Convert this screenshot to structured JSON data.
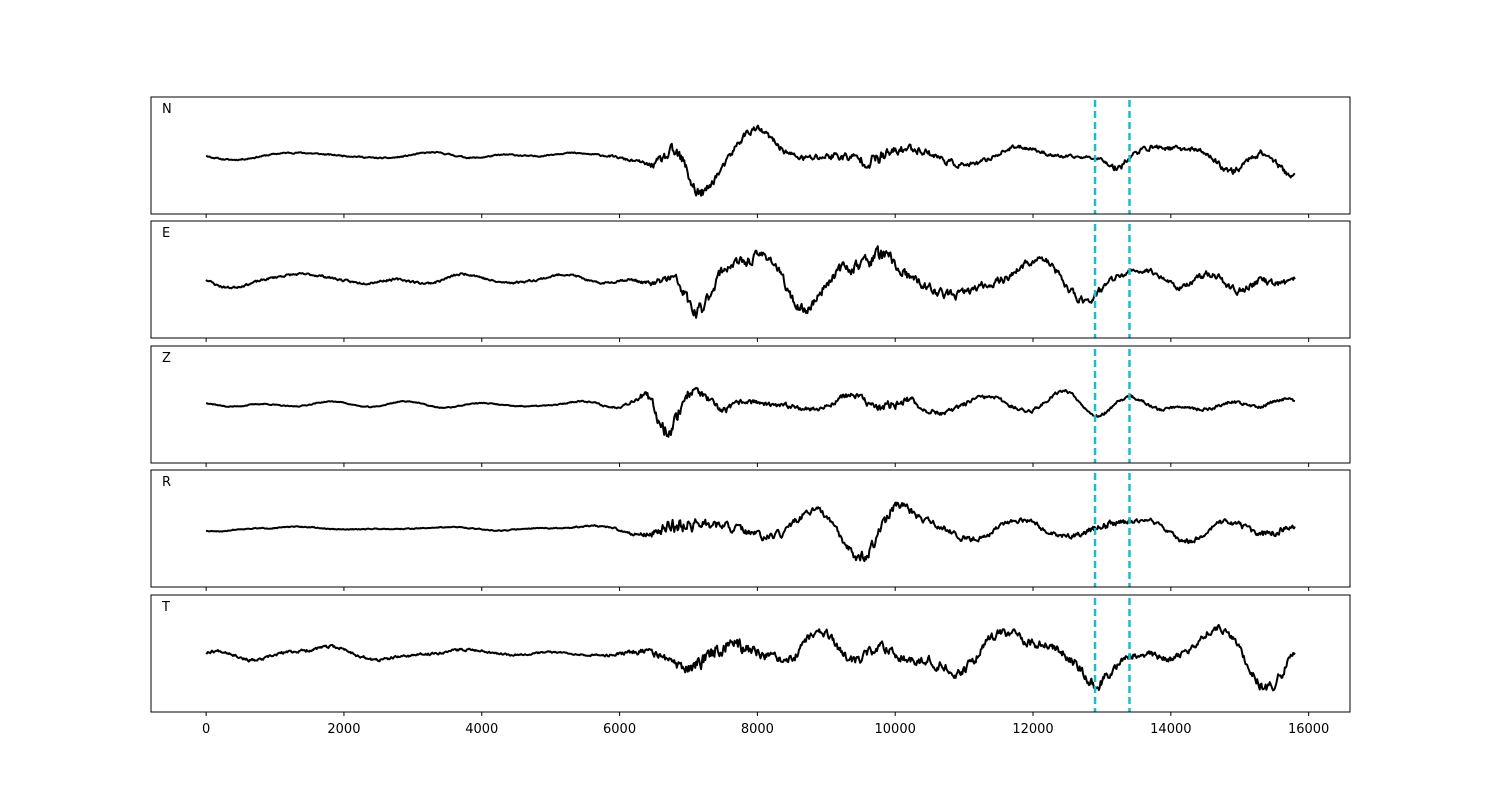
{
  "chart_data": {
    "type": "line",
    "title": "",
    "xlabel": "",
    "ylabel": "",
    "xlim": [
      -800,
      16600
    ],
    "x_ticks": [
      0,
      2000,
      4000,
      6000,
      8000,
      10000,
      12000,
      14000,
      16000
    ],
    "x_tick_labels": [
      "0",
      "2000",
      "4000",
      "6000",
      "8000",
      "10000",
      "12000",
      "14000",
      "16000"
    ],
    "x_range": [
      0,
      15800
    ],
    "grid": false,
    "line_color": "#000000",
    "marker_color": "#17becf",
    "markers": [
      12900,
      13400
    ],
    "panels": [
      {
        "label": "N",
        "seed": 11,
        "envelope": [
          [
            0,
            0.08
          ],
          [
            3000,
            0.08
          ],
          [
            5500,
            0.08
          ],
          [
            6300,
            0.18
          ],
          [
            6600,
            0.55
          ],
          [
            6800,
            0.95
          ],
          [
            7100,
            0.95
          ],
          [
            7400,
            0.45
          ],
          [
            8000,
            0.45
          ],
          [
            8500,
            0.35
          ],
          [
            9300,
            0.55
          ],
          [
            9800,
            0.85
          ],
          [
            10000,
            0.6
          ],
          [
            11000,
            0.3
          ],
          [
            12500,
            0.2
          ],
          [
            13000,
            0.15
          ],
          [
            13200,
            0.5
          ],
          [
            13500,
            0.3
          ],
          [
            14500,
            0.3
          ],
          [
            15000,
            0.45
          ],
          [
            15800,
            0.35
          ]
        ]
      },
      {
        "label": "E",
        "seed": 23,
        "envelope": [
          [
            0,
            0.14
          ],
          [
            3500,
            0.14
          ],
          [
            5800,
            0.12
          ],
          [
            6300,
            0.2
          ],
          [
            6700,
            0.55
          ],
          [
            7100,
            0.95
          ],
          [
            7400,
            0.7
          ],
          [
            8500,
            0.55
          ],
          [
            9400,
            0.7
          ],
          [
            9800,
            1.0
          ],
          [
            10200,
            0.6
          ],
          [
            11000,
            0.5
          ],
          [
            12000,
            0.45
          ],
          [
            12900,
            0.55
          ],
          [
            13500,
            0.3
          ],
          [
            15000,
            0.45
          ],
          [
            15800,
            0.4
          ]
        ]
      },
      {
        "label": "Z",
        "seed": 37,
        "envelope": [
          [
            0,
            0.06
          ],
          [
            5000,
            0.06
          ],
          [
            5800,
            0.12
          ],
          [
            6200,
            0.2
          ],
          [
            6500,
            0.75
          ],
          [
            6800,
            1.0
          ],
          [
            7100,
            0.55
          ],
          [
            8000,
            0.3
          ],
          [
            9000,
            0.3
          ],
          [
            9700,
            0.45
          ],
          [
            10000,
            0.65
          ],
          [
            10500,
            0.3
          ],
          [
            12000,
            0.22
          ],
          [
            13500,
            0.2
          ],
          [
            15800,
            0.2
          ]
        ]
      },
      {
        "label": "R",
        "seed": 51,
        "envelope": [
          [
            0,
            0.06
          ],
          [
            5000,
            0.06
          ],
          [
            5800,
            0.1
          ],
          [
            6300,
            0.25
          ],
          [
            6700,
            0.9
          ],
          [
            7000,
            1.0
          ],
          [
            7400,
            0.55
          ],
          [
            8200,
            0.45
          ],
          [
            9200,
            0.45
          ],
          [
            9900,
            0.85
          ],
          [
            10300,
            0.45
          ],
          [
            11500,
            0.3
          ],
          [
            12500,
            0.3
          ],
          [
            13100,
            0.5
          ],
          [
            13500,
            0.25
          ],
          [
            15000,
            0.35
          ],
          [
            15500,
            0.5
          ],
          [
            15800,
            0.3
          ]
        ]
      },
      {
        "label": "T",
        "seed": 67,
        "envelope": [
          [
            0,
            0.18
          ],
          [
            2500,
            0.18
          ],
          [
            5500,
            0.1
          ],
          [
            6000,
            0.2
          ],
          [
            6700,
            0.5
          ],
          [
            7200,
            0.9
          ],
          [
            7500,
            1.0
          ],
          [
            8000,
            0.6
          ],
          [
            9000,
            0.55
          ],
          [
            10500,
            0.6
          ],
          [
            12500,
            0.55
          ],
          [
            12900,
            0.8
          ],
          [
            13300,
            0.4
          ],
          [
            15000,
            0.45
          ],
          [
            15600,
            0.75
          ],
          [
            15800,
            0.35
          ]
        ]
      }
    ]
  }
}
